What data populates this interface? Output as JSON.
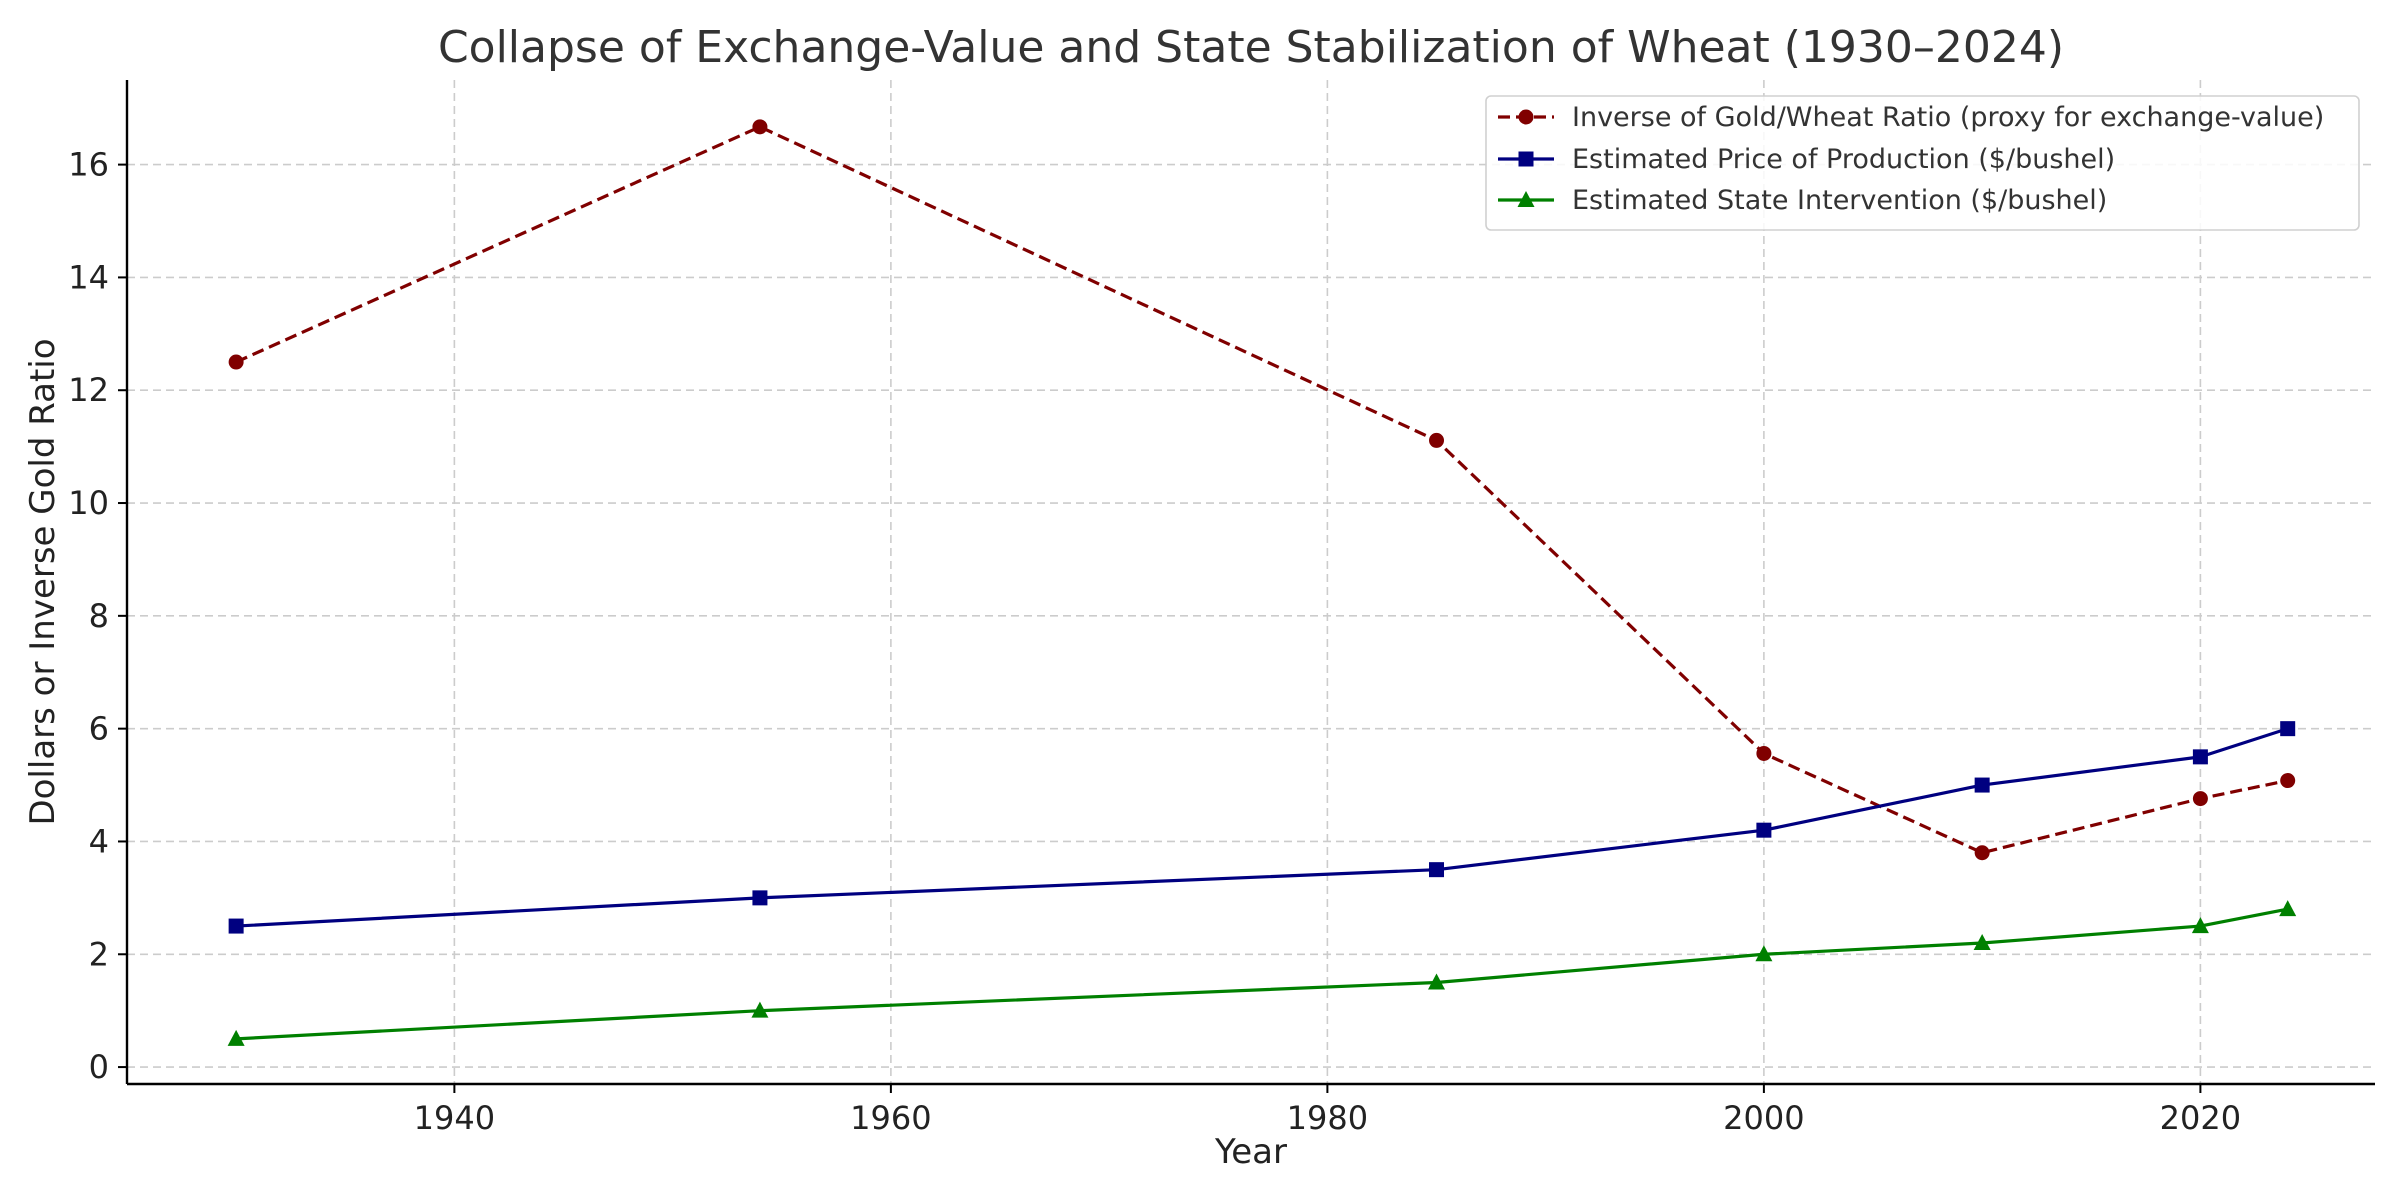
{
  "chart_data": {
    "type": "line",
    "title": "Collapse of Exchange-Value and State Stabilization of Wheat (1930–2024)",
    "xlabel": "Year",
    "ylabel": "Dollars or Inverse Gold Ratio",
    "xlim": [
      1925,
      2028
    ],
    "ylim": [
      -0.3,
      17.5
    ],
    "xticks": [
      1940,
      1960,
      1980,
      2000,
      2020
    ],
    "yticks": [
      0,
      2,
      4,
      6,
      8,
      10,
      12,
      14,
      16
    ],
    "grid": true,
    "legend_position": "top-right",
    "x": [
      1930,
      1954,
      1985,
      2000,
      2010,
      2020,
      2024
    ],
    "series": [
      {
        "name": "Inverse of Gold/Wheat Ratio (proxy for exchange-value)",
        "values": [
          12.5,
          16.67,
          11.11,
          5.56,
          3.8,
          4.76,
          5.08
        ],
        "color": "#800000",
        "marker": "circle",
        "linestyle": "dashed"
      },
      {
        "name": "Estimated Price of Production ($/bushel)",
        "values": [
          2.5,
          3.0,
          3.5,
          4.2,
          5.0,
          5.5,
          6.0
        ],
        "color": "#000080",
        "marker": "square",
        "linestyle": "solid"
      },
      {
        "name": "Estimated State Intervention ($/bushel)",
        "values": [
          0.5,
          1.0,
          1.5,
          2.0,
          2.2,
          2.5,
          2.8
        ],
        "color": "#008000",
        "marker": "triangle",
        "linestyle": "solid"
      }
    ]
  }
}
